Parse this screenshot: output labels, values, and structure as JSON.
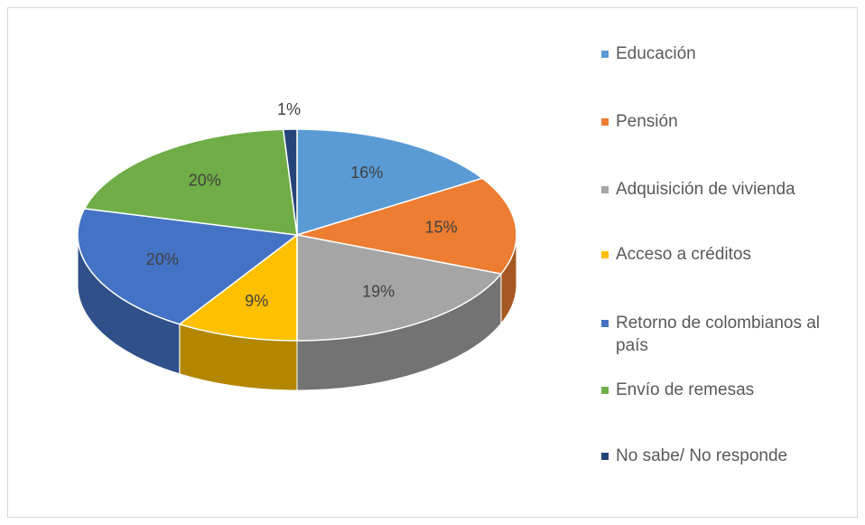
{
  "chart_data": {
    "type": "pie",
    "categories": [
      "Educación",
      "Pensión",
      "Adquisición de vivienda",
      "Acceso a créditos",
      "Retorno de colombianos al país",
      "Envío de remesas",
      "No sabe/ No responde"
    ],
    "values": [
      16,
      15,
      19,
      9,
      20,
      20,
      1
    ],
    "value_labels": [
      "16%",
      "15%",
      "19%",
      "9%",
      "20%",
      "20%",
      "1%"
    ],
    "colors": [
      "#5b9bd5",
      "#ed7d31",
      "#a5a5a5",
      "#ffc000",
      "#4472c4",
      "#70ad47",
      "#264478"
    ],
    "legend": "right"
  }
}
